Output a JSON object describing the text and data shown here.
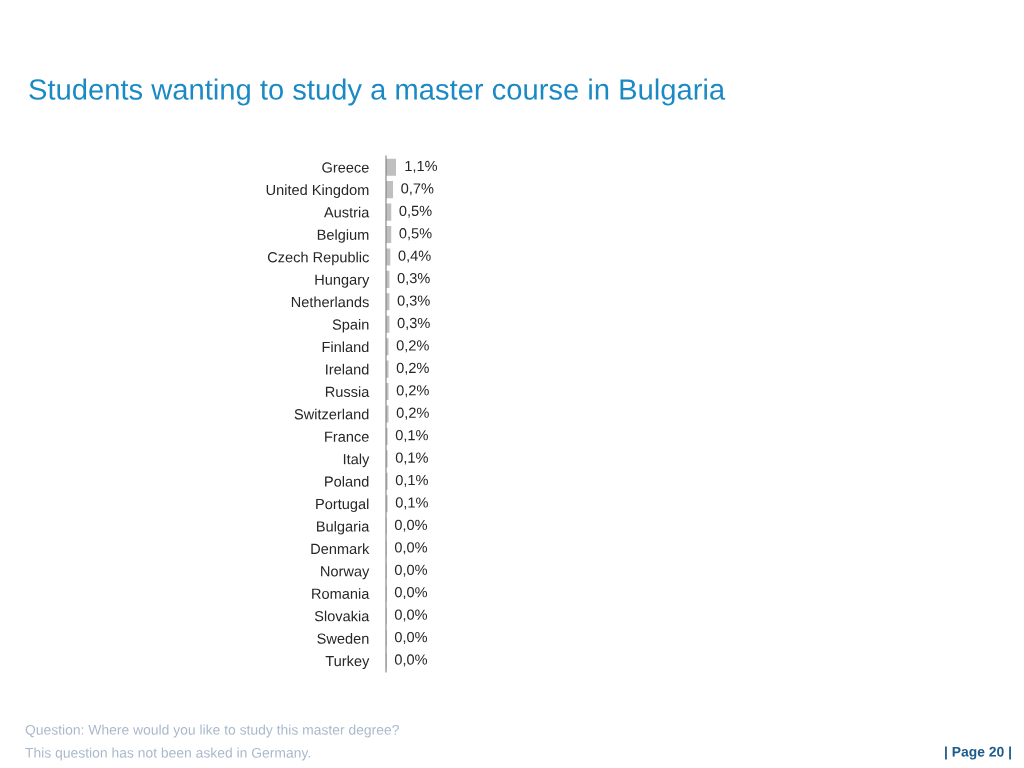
{
  "chart_data": {
    "type": "bar",
    "orientation": "horizontal",
    "title": "Students wanting to study a master course in Bulgaria",
    "categories": [
      "Greece",
      "United Kingdom",
      "Austria",
      "Belgium",
      "Czech Republic",
      "Hungary",
      "Netherlands",
      "Spain",
      "Finland",
      "Ireland",
      "Russia",
      "Switzerland",
      "France",
      "Italy",
      "Poland",
      "Portugal",
      "Bulgaria",
      "Denmark",
      "Norway",
      "Romania",
      "Slovakia",
      "Sweden",
      "Turkey"
    ],
    "values": [
      1.1,
      0.7,
      0.5,
      0.5,
      0.4,
      0.3,
      0.3,
      0.3,
      0.2,
      0.2,
      0.2,
      0.2,
      0.1,
      0.1,
      0.1,
      0.1,
      0.0,
      0.0,
      0.0,
      0.0,
      0.0,
      0.0,
      0.0
    ],
    "value_labels": [
      "1,1%",
      "0,7%",
      "0,5%",
      "0,5%",
      "0,4%",
      "0,3%",
      "0,3%",
      "0,3%",
      "0,2%",
      "0,2%",
      "0,2%",
      "0,2%",
      "0,1%",
      "0,1%",
      "0,1%",
      "0,1%",
      "0,0%",
      "0,0%",
      "0,0%",
      "0,0%",
      "0,0%",
      "0,0%",
      "0,0%"
    ],
    "color": "#bfbfbf",
    "tick_labels": "y",
    "grid": false,
    "legend": false,
    "annotations": [
      "Question: Where would you like to study this master degree?",
      "This question has not been asked in Germany.",
      "| Page 20 |"
    ]
  }
}
